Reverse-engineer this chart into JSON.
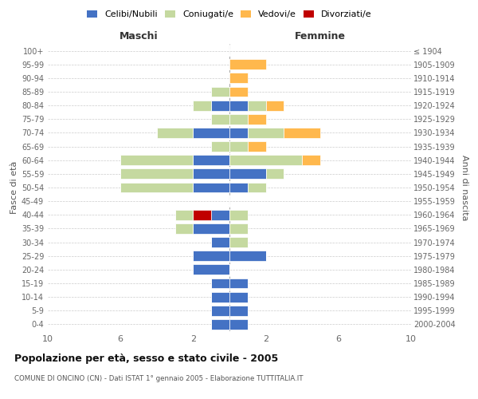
{
  "age_groups": [
    "0-4",
    "5-9",
    "10-14",
    "15-19",
    "20-24",
    "25-29",
    "30-34",
    "35-39",
    "40-44",
    "45-49",
    "50-54",
    "55-59",
    "60-64",
    "65-69",
    "70-74",
    "75-79",
    "80-84",
    "85-89",
    "90-94",
    "95-99",
    "100+"
  ],
  "birth_years": [
    "2000-2004",
    "1995-1999",
    "1990-1994",
    "1985-1989",
    "1980-1984",
    "1975-1979",
    "1970-1974",
    "1965-1969",
    "1960-1964",
    "1955-1959",
    "1950-1954",
    "1945-1949",
    "1940-1944",
    "1935-1939",
    "1930-1934",
    "1925-1929",
    "1920-1924",
    "1915-1919",
    "1910-1914",
    "1905-1909",
    "≤ 1904"
  ],
  "males_celibi": [
    1,
    1,
    1,
    1,
    2,
    2,
    1,
    2,
    1,
    0,
    2,
    2,
    2,
    0,
    2,
    0,
    1,
    0,
    0,
    0,
    0
  ],
  "males_coniugati": [
    0,
    0,
    0,
    0,
    0,
    0,
    0,
    1,
    1,
    0,
    4,
    4,
    4,
    1,
    2,
    1,
    1,
    1,
    0,
    0,
    0
  ],
  "males_vedovi": [
    0,
    0,
    0,
    0,
    0,
    0,
    0,
    0,
    0,
    0,
    0,
    0,
    0,
    0,
    0,
    0,
    0,
    0,
    0,
    0,
    0
  ],
  "males_divorziati": [
    0,
    0,
    0,
    0,
    0,
    0,
    0,
    0,
    1,
    0,
    0,
    0,
    0,
    0,
    0,
    0,
    0,
    0,
    0,
    0,
    0
  ],
  "females_nubili": [
    1,
    1,
    1,
    1,
    0,
    2,
    0,
    0,
    0,
    0,
    1,
    2,
    0,
    0,
    1,
    0,
    1,
    0,
    0,
    0,
    0
  ],
  "females_coniugate": [
    0,
    0,
    0,
    0,
    0,
    0,
    1,
    1,
    1,
    0,
    1,
    1,
    4,
    1,
    2,
    1,
    1,
    0,
    0,
    0,
    0
  ],
  "females_vedove": [
    0,
    0,
    0,
    0,
    0,
    0,
    0,
    0,
    0,
    0,
    0,
    0,
    1,
    1,
    2,
    1,
    1,
    1,
    1,
    2,
    0
  ],
  "females_divorziate": [
    0,
    0,
    0,
    0,
    0,
    0,
    0,
    0,
    0,
    0,
    0,
    0,
    0,
    0,
    0,
    0,
    0,
    0,
    0,
    0,
    0
  ],
  "color_celibi": "#4472C4",
  "color_coniugati": "#C5D9A0",
  "color_vedovi": "#FFB84D",
  "color_divorziati": "#C00000",
  "title": "Popolazione per età, sesso e stato civile - 2005",
  "subtitle": "COMUNE DI ONCINO (CN) - Dati ISTAT 1° gennaio 2005 - Elaborazione TUTTITALIA.IT",
  "xlabel_left": "Maschi",
  "xlabel_right": "Femmine",
  "ylabel_left": "Fasce di età",
  "ylabel_right": "Anni di nascita",
  "legend_labels": [
    "Celibi/Nubili",
    "Coniugati/e",
    "Vedovi/e",
    "Divorziati/e"
  ],
  "xlim": 10
}
